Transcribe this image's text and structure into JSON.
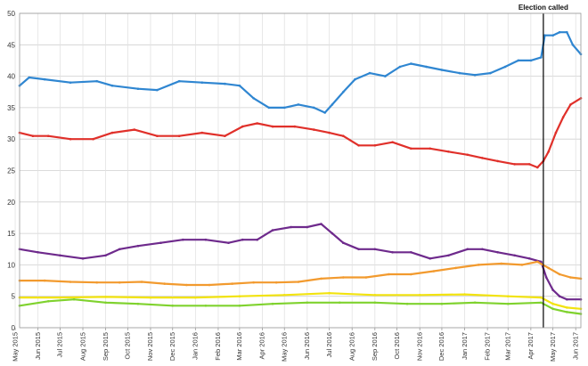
{
  "chart_data": {
    "type": "line",
    "title": "",
    "xlabel": "",
    "ylabel": "",
    "ylim": [
      0,
      50
    ],
    "yticks": [
      0,
      5,
      10,
      15,
      20,
      25,
      30,
      35,
      40,
      45,
      50
    ],
    "xlim": [
      "2015-05-07",
      "2017-06-08"
    ],
    "x_ticks": [
      {
        "date": "2015-05-01",
        "label": "May 2015"
      },
      {
        "date": "2015-06-01",
        "label": "Jun 2015"
      },
      {
        "date": "2015-07-01",
        "label": "Jul 2015"
      },
      {
        "date": "2015-08-01",
        "label": "Aug 2015"
      },
      {
        "date": "2015-09-01",
        "label": "Sep 2015"
      },
      {
        "date": "2015-10-01",
        "label": "Oct 2015"
      },
      {
        "date": "2015-11-01",
        "label": "Nov 2015"
      },
      {
        "date": "2015-12-01",
        "label": "Dec 2015"
      },
      {
        "date": "2016-01-01",
        "label": "Jan 2016"
      },
      {
        "date": "2016-02-01",
        "label": "Feb 2016"
      },
      {
        "date": "2016-03-01",
        "label": "Mar 2016"
      },
      {
        "date": "2016-04-01",
        "label": "Apr 2016"
      },
      {
        "date": "2016-05-01",
        "label": "May 2016"
      },
      {
        "date": "2016-06-01",
        "label": "Jun 2016"
      },
      {
        "date": "2016-07-01",
        "label": "Jul 2016"
      },
      {
        "date": "2016-08-01",
        "label": "Aug 2016"
      },
      {
        "date": "2016-09-01",
        "label": "Sep 2016"
      },
      {
        "date": "2016-10-01",
        "label": "Oct 2016"
      },
      {
        "date": "2016-11-01",
        "label": "Nov 2016"
      },
      {
        "date": "2016-12-01",
        "label": "Dec 2016"
      },
      {
        "date": "2017-01-01",
        "label": "Jan 2017"
      },
      {
        "date": "2017-02-01",
        "label": "Feb 2017"
      },
      {
        "date": "2017-03-01",
        "label": "Mar 2017"
      },
      {
        "date": "2017-04-01",
        "label": "Apr 2017"
      },
      {
        "date": "2017-05-01",
        "label": "May 2017"
      },
      {
        "date": "2017-06-01",
        "label": "Jun 2017"
      }
    ],
    "grid": true,
    "legend": "none",
    "annotation": {
      "label": "Election called",
      "date": "2017-04-18"
    },
    "series": [
      {
        "color": "#2f86d1",
        "x": [
          "2015-05-07",
          "2015-05-20",
          "2015-06-10",
          "2015-07-15",
          "2015-08-20",
          "2015-09-10",
          "2015-10-15",
          "2015-11-10",
          "2015-12-10",
          "2016-01-10",
          "2016-02-10",
          "2016-03-01",
          "2016-03-20",
          "2016-04-10",
          "2016-05-01",
          "2016-05-20",
          "2016-06-10",
          "2016-06-25",
          "2016-07-05",
          "2016-07-20",
          "2016-08-05",
          "2016-08-25",
          "2016-09-15",
          "2016-10-05",
          "2016-10-20",
          "2016-11-10",
          "2016-12-01",
          "2016-12-25",
          "2017-01-15",
          "2017-02-05",
          "2017-02-25",
          "2017-03-15",
          "2017-04-01",
          "2017-04-15",
          "2017-04-20",
          "2017-05-01",
          "2017-05-10",
          "2017-05-20",
          "2017-05-28",
          "2017-06-08"
        ],
        "y": [
          38.5,
          39.8,
          39.5,
          39,
          39.2,
          38.5,
          38,
          37.8,
          39.2,
          39,
          38.8,
          38.5,
          36.5,
          35,
          35,
          35.5,
          35,
          34.2,
          35.5,
          37.5,
          39.5,
          40.5,
          40,
          41.5,
          42,
          41.5,
          41,
          40.5,
          40.2,
          40.5,
          41.5,
          42.5,
          42.5,
          43,
          46.5,
          46.5,
          47,
          47,
          45,
          43.5
        ]
      },
      {
        "color": "#e0302a",
        "x": [
          "2015-05-07",
          "2015-05-25",
          "2015-06-15",
          "2015-07-15",
          "2015-08-15",
          "2015-09-10",
          "2015-10-10",
          "2015-11-10",
          "2015-12-10",
          "2016-01-10",
          "2016-02-10",
          "2016-03-05",
          "2016-03-25",
          "2016-04-15",
          "2016-05-15",
          "2016-06-10",
          "2016-07-01",
          "2016-07-20",
          "2016-08-10",
          "2016-09-01",
          "2016-09-25",
          "2016-10-20",
          "2016-11-15",
          "2016-12-10",
          "2017-01-05",
          "2017-01-25",
          "2017-02-15",
          "2017-03-10",
          "2017-03-30",
          "2017-04-10",
          "2017-04-18",
          "2017-04-25",
          "2017-05-05",
          "2017-05-15",
          "2017-05-25",
          "2017-06-08"
        ],
        "y": [
          31,
          30.5,
          30.5,
          30,
          30,
          31,
          31.5,
          30.5,
          30.5,
          31,
          30.5,
          32,
          32.5,
          32,
          32,
          31.5,
          31,
          30.5,
          29,
          29,
          29.5,
          28.5,
          28.5,
          28,
          27.5,
          27,
          26.5,
          26,
          26,
          25.5,
          26.5,
          28,
          31,
          33.5,
          35.5,
          36.5
        ]
      },
      {
        "color": "#6e2a8c",
        "x": [
          "2015-05-07",
          "2015-06-01",
          "2015-07-01",
          "2015-08-01",
          "2015-09-01",
          "2015-09-20",
          "2015-10-15",
          "2015-11-15",
          "2015-12-15",
          "2016-01-15",
          "2016-02-15",
          "2016-03-05",
          "2016-03-25",
          "2016-04-15",
          "2016-05-10",
          "2016-06-01",
          "2016-06-20",
          "2016-07-05",
          "2016-07-20",
          "2016-08-10",
          "2016-09-01",
          "2016-09-25",
          "2016-10-20",
          "2016-11-15",
          "2016-12-10",
          "2017-01-05",
          "2017-01-25",
          "2017-02-15",
          "2017-03-10",
          "2017-03-30",
          "2017-04-15",
          "2017-04-22",
          "2017-05-01",
          "2017-05-10",
          "2017-05-20",
          "2017-06-08"
        ],
        "y": [
          12.5,
          12,
          11.5,
          11,
          11.5,
          12.5,
          13,
          13.5,
          14,
          14,
          13.5,
          14,
          14,
          15.5,
          16,
          16,
          16.5,
          15,
          13.5,
          12.5,
          12.5,
          12,
          12,
          11,
          11.5,
          12.5,
          12.5,
          12,
          11.5,
          11,
          10.5,
          8,
          6,
          5,
          4.5,
          4.5
        ]
      },
      {
        "color": "#f29a2e",
        "x": [
          "2015-05-07",
          "2015-06-10",
          "2015-07-15",
          "2015-08-20",
          "2015-09-20",
          "2015-10-20",
          "2015-11-20",
          "2015-12-20",
          "2016-01-20",
          "2016-02-20",
          "2016-03-20",
          "2016-04-20",
          "2016-05-20",
          "2016-06-20",
          "2016-07-20",
          "2016-08-20",
          "2016-09-20",
          "2016-10-20",
          "2016-11-20",
          "2016-12-20",
          "2017-01-20",
          "2017-02-20",
          "2017-03-20",
          "2017-04-10",
          "2017-04-25",
          "2017-05-10",
          "2017-05-25",
          "2017-06-08"
        ],
        "y": [
          7.5,
          7.5,
          7.3,
          7.2,
          7.2,
          7.3,
          7,
          6.8,
          6.8,
          7,
          7.2,
          7.2,
          7.3,
          7.8,
          8,
          8,
          8.5,
          8.5,
          9,
          9.5,
          10,
          10.2,
          10,
          10.5,
          9.5,
          8.5,
          8,
          7.8
        ]
      },
      {
        "color": "#f2e30f",
        "x": [
          "2015-05-07",
          "2015-07-01",
          "2015-09-01",
          "2015-11-01",
          "2016-01-01",
          "2016-03-01",
          "2016-05-01",
          "2016-07-01",
          "2016-09-01",
          "2016-11-01",
          "2017-01-01",
          "2017-03-01",
          "2017-04-15",
          "2017-05-01",
          "2017-05-20",
          "2017-06-08"
        ],
        "y": [
          4.8,
          4.8,
          4.9,
          4.8,
          4.8,
          5,
          5.2,
          5.5,
          5.2,
          5.2,
          5.3,
          5,
          4.8,
          3.8,
          3.2,
          3
        ]
      },
      {
        "color": "#7fd22e",
        "x": [
          "2015-05-07",
          "2015-06-15",
          "2015-07-20",
          "2015-09-01",
          "2015-10-15",
          "2015-12-01",
          "2016-01-15",
          "2016-03-01",
          "2016-04-15",
          "2016-06-01",
          "2016-07-15",
          "2016-09-01",
          "2016-10-15",
          "2016-12-01",
          "2017-01-15",
          "2017-03-01",
          "2017-04-15",
          "2017-05-01",
          "2017-05-20",
          "2017-06-08"
        ],
        "y": [
          3.5,
          4.2,
          4.5,
          4,
          3.8,
          3.5,
          3.5,
          3.5,
          3.8,
          4,
          4,
          4,
          3.8,
          3.8,
          4,
          3.8,
          4,
          3,
          2.5,
          2.2
        ]
      }
    ]
  }
}
